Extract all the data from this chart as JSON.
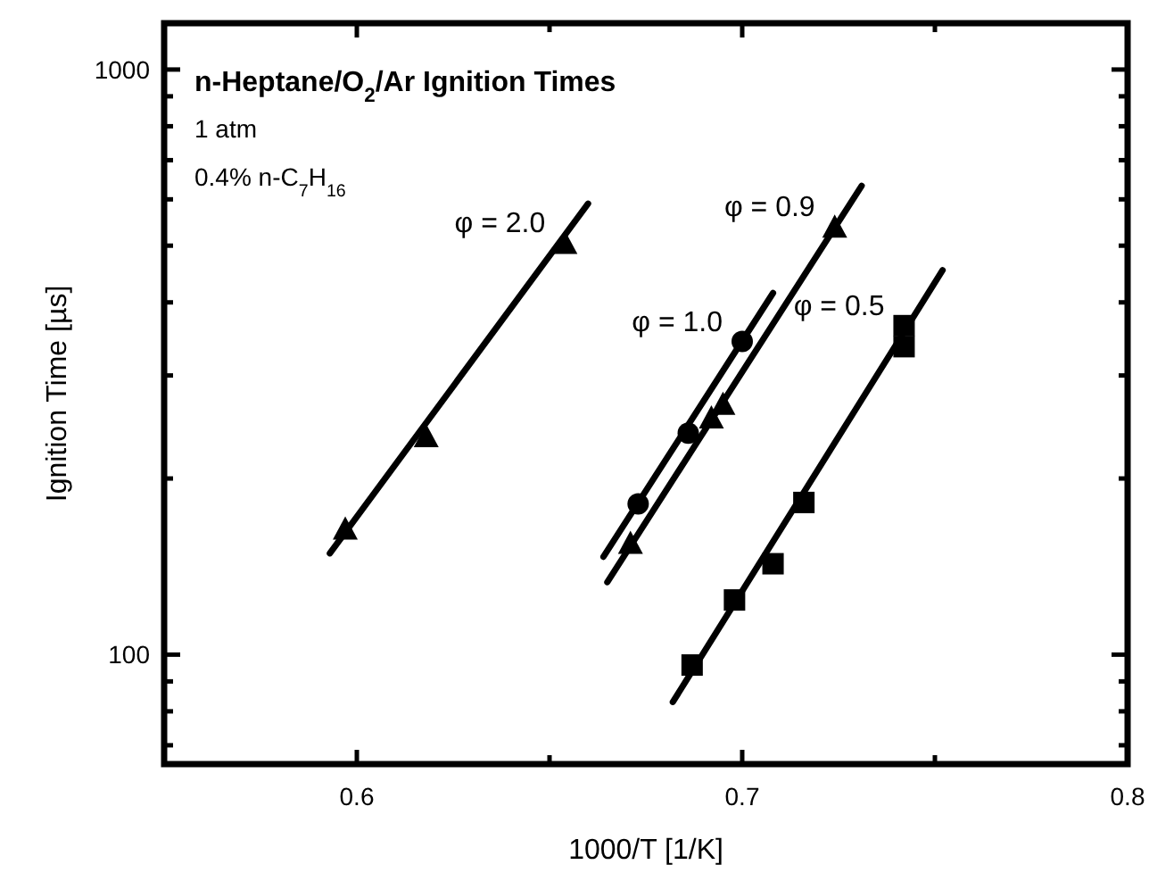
{
  "chart_data": {
    "type": "scatter",
    "title": "n-Heptane/O$_{2}$/Ar Ignition Times",
    "xlabel": "1000/T [1/K]",
    "ylabel": "Ignition Time [µs]",
    "annotations": [
      "1 atm",
      "0.4% n-C$_{7}$H$_{16}$"
    ],
    "log": "y",
    "xlim": [
      0.55,
      0.8
    ],
    "ylim": [
      65,
      1200
    ],
    "xticks": [
      {
        "value": 0.55,
        "label": null
      },
      0.6,
      {
        "value": 0.65,
        "label": null
      },
      0.7,
      {
        "value": 0.75,
        "label": null
      },
      0.8
    ],
    "yticks": [
      {
        "value": 70,
        "label": null
      },
      {
        "value": 80,
        "label": null
      },
      {
        "value": 90,
        "label": null
      },
      100,
      {
        "value": 200,
        "label": null
      },
      {
        "value": 300,
        "label": null
      },
      {
        "value": 400,
        "label": null
      },
      {
        "value": 500,
        "label": null
      },
      {
        "value": 600,
        "label": null
      },
      {
        "value": 700,
        "label": null
      },
      {
        "value": 800,
        "label": null
      },
      {
        "value": 900,
        "label": null
      },
      1000
    ],
    "grid": false,
    "series": [
      {
        "name": "φ = 2.0",
        "color": "#000000",
        "marker": "triangle",
        "x": [
          0.597,
          0.618,
          0.654
        ],
        "values": [
          164,
          236,
          505
        ]
      },
      {
        "type": "line",
        "color": "#000000",
        "marker": "none",
        "x": [
          0.593,
          0.66
        ],
        "values": [
          149,
          590
        ]
      },
      {
        "name": "φ = 1.0",
        "color": "#000000",
        "marker": "circle",
        "x": [
          0.673,
          0.686,
          0.7
        ],
        "values": [
          181,
          239,
          343
        ]
      },
      {
        "type": "line",
        "color": "#000000",
        "marker": "none",
        "x": [
          0.664,
          0.708
        ],
        "values": [
          147,
          415
        ]
      },
      {
        "name": "φ = 0.9",
        "color": "#000000",
        "marker": "triangle",
        "x": [
          0.671,
          0.692,
          0.695,
          0.724
        ],
        "values": [
          155,
          254,
          268,
          538
        ]
      },
      {
        "type": "line",
        "color": "#000000",
        "marker": "none",
        "x": [
          0.665,
          0.731
        ],
        "values": [
          133,
          633
        ]
      },
      {
        "name": "φ = 0.5",
        "color": "#000000",
        "marker": "square",
        "x": [
          0.687,
          0.698,
          0.708,
          0.716,
          0.742,
          0.742
        ],
        "values": [
          96,
          124,
          143,
          182,
          336,
          365
        ]
      },
      {
        "type": "line",
        "color": "#000000",
        "marker": "none",
        "x": [
          0.682,
          0.752
        ],
        "values": [
          83,
          454
        ]
      }
    ]
  }
}
